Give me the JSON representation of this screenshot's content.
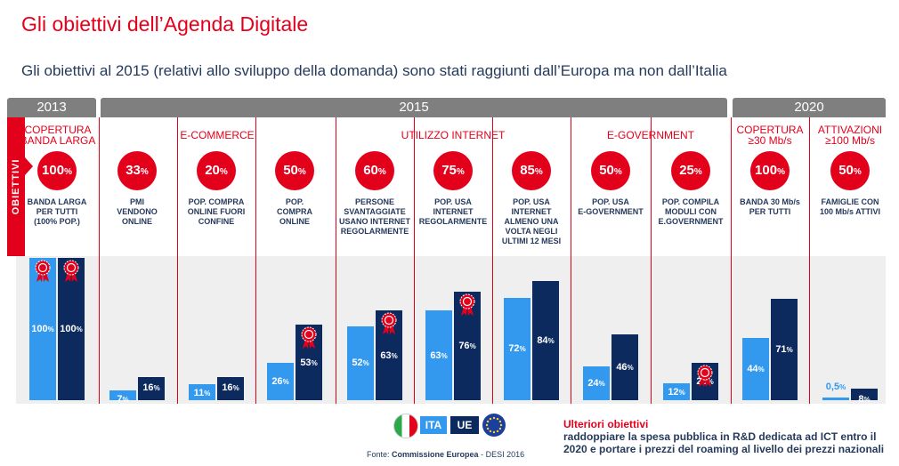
{
  "title": "Gli obiettivi dell’Agenda Digitale",
  "subtitle": "Gli obiettivi al 2015 (relativi allo sviluppo della domanda) sono stati raggiunti dall’Europa ma non dall’Italia",
  "years": [
    "2013",
    "2015",
    "2020"
  ],
  "side_tab": "OBIETTIVI",
  "groups": [
    {
      "label": "COPERTURA\nBANDA LARGA"
    },
    {
      "label": "E-COMMERCE"
    },
    {
      "label": "UTILIZZO INTERNET"
    },
    {
      "label": "E-GOVERNMENT"
    },
    {
      "label": "COPERTURA\n≥30 Mb/s"
    },
    {
      "label": "ATTIVAZIONI\n≥100 Mb/s"
    }
  ],
  "legend": {
    "ita": "ITA",
    "ue": "UE"
  },
  "source": {
    "prefix": "Fonte:",
    "name": "Commissione Europea",
    "suffix": "- DESI 2016"
  },
  "further": {
    "title": "Ulteriori obiettivi",
    "text": "raddoppiare la spesa pubblica in R&D dedicata ad ICT entro il 2020 e portare i prezzi del roaming al livello dei prezzi nazionali"
  },
  "colors": {
    "red": "#e3001b",
    "ita": "#3399ef",
    "ue": "#0d2a5e",
    "band": "#efefef"
  },
  "chart_data": {
    "type": "bar",
    "categories": [
      "BANDA LARGA PER TUTTI (100% POP.)",
      "PMI VENDONO ONLINE",
      "POP. COMPRA ONLINE FUORI CONFINE",
      "POP. COMPRA ONLINE",
      "PERSONE SVANTAGGIATE USANO INTERNET REGOLARMENTE",
      "POP. USA INTERNET REGOLARMENTE",
      "POP. USA INTERNET ALMENO UNA VOLTA NEGLI ULTIMI 12 MESI",
      "POP. USA E-GOVERNMENT",
      "POP. COMPILA MODULI CON E.GOVERNMENT",
      "BANDA 30 Mb/s PER TUTTI",
      "FAMIGLIE CON 100 Mb/s ATTIVI"
    ],
    "category_labels": [
      "BANDA LARGA\nPER TUTTI\n(100% POP.)",
      "PMI\nVENDONO\nONLINE",
      "POP. COMPRA\nONLINE FUORI\nCONFINE",
      "POP.\nCOMPRA\nONLINE",
      "PERSONE\nSVANTAGGIATE\nUSANO INTERNET\nREGOLARMENTE",
      "POP. USA\nINTERNET\nREGOLARMENTE",
      "POP. USA\nINTERNET\nALMENO UNA\nVOLTA NEGLI\nULTIMI 12 MESI",
      "POP. USA\nE-GOVERNMENT",
      "POP. COMPILA\nMODULI  CON\nE.GOVERNMENT",
      "BANDA 30 Mb/s\nPER TUTTI",
      "FAMIGLIE CON\n100 Mb/s ATTIVI"
    ],
    "targets": [
      100,
      33,
      20,
      50,
      60,
      75,
      85,
      50,
      25,
      100,
      50
    ],
    "target_labels": [
      "100",
      "33",
      "20",
      "50",
      "60",
      "75",
      "85",
      "50",
      "25",
      "100",
      "50"
    ],
    "series": [
      {
        "name": "ITA",
        "values": [
          100,
          7,
          11,
          26,
          52,
          63,
          72,
          24,
          12,
          44,
          0.5
        ],
        "labels": [
          "100",
          "7",
          "11",
          "26",
          "52",
          "63",
          "72",
          "24",
          "12",
          "44",
          "0,5"
        ]
      },
      {
        "name": "UE",
        "values": [
          100,
          16,
          16,
          53,
          63,
          76,
          84,
          46,
          26,
          71,
          8
        ],
        "labels": [
          "100",
          "16",
          "16",
          "53",
          "63",
          "76",
          "84",
          "46",
          "26",
          "71",
          "8"
        ]
      }
    ],
    "achieved_markers": [
      {
        "series": "ITA",
        "category": 0
      },
      {
        "series": "UE",
        "category": 0
      },
      {
        "series": "UE",
        "category": 3
      },
      {
        "series": "UE",
        "category": 4
      },
      {
        "series": "UE",
        "category": 5
      },
      {
        "series": "UE",
        "category": 8
      }
    ],
    "unit": "%",
    "ylim": [
      0,
      100
    ]
  }
}
